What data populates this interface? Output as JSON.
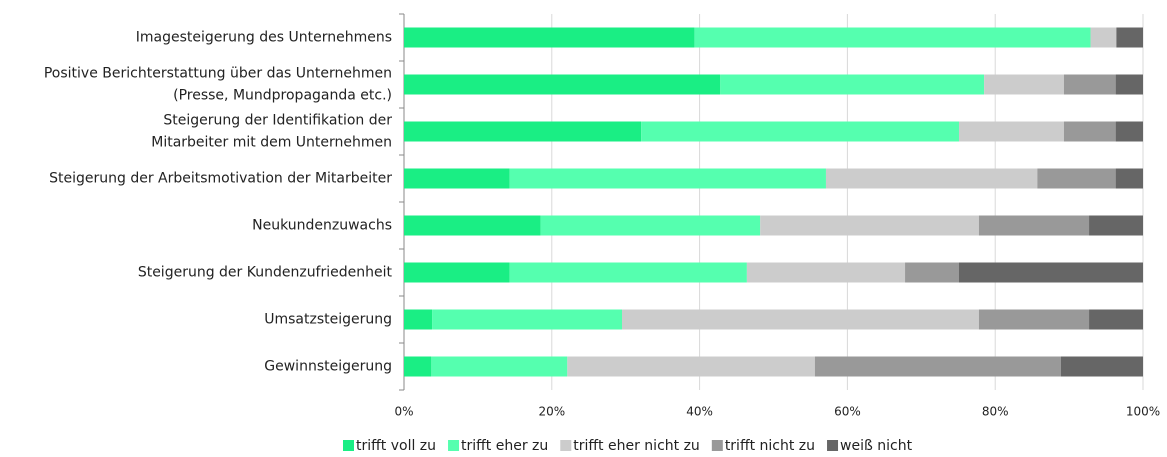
{
  "chart_data": {
    "type": "stacked-barh",
    "categories": [
      "Imagesteigerung des Unternehmens",
      "Positive Berichterstattung über das Unternehmen\n(Presse, Mundpropaganda etc.)",
      "Steigerung der Identifikation der\nMitarbeiter mit dem Unternehmen",
      "Steigerung der Arbeitsmotivation der Mitarbeiter",
      "Neukundenzuwachs",
      "Steigerung der Kundenzufriedenheit",
      "Umsatzsteigerung",
      "Gewinnsteigerung"
    ],
    "series": [
      {
        "name": "trifft voll zu",
        "color": "#1aee84",
        "values": [
          39.3,
          42.8,
          32.1,
          14.3,
          18.5,
          14.3,
          3.8,
          3.7
        ]
      },
      {
        "name": "trifft eher zu",
        "color": "#55ffaf",
        "values": [
          53.6,
          35.7,
          43.0,
          42.8,
          29.7,
          32.1,
          25.7,
          18.4
        ]
      },
      {
        "name": "trifft eher nicht zu",
        "color": "#cccccc",
        "values": [
          3.5,
          10.8,
          14.2,
          28.6,
          29.6,
          21.4,
          48.3,
          33.5
        ]
      },
      {
        "name": "trifft nicht zu",
        "color": "#999999",
        "values": [
          0,
          7.0,
          7.0,
          10.6,
          14.9,
          7.3,
          14.9,
          33.3
        ]
      },
      {
        "name": "weiß nicht",
        "color": "#666666",
        "values": [
          3.6,
          3.7,
          3.7,
          3.7,
          7.3,
          24.9,
          7.3,
          11.1
        ]
      }
    ],
    "xlim": [
      0,
      100
    ],
    "xticks": [
      {
        "value": 0,
        "label": "0%"
      },
      {
        "value": 20,
        "label": "20%"
      },
      {
        "value": 40,
        "label": "40%"
      },
      {
        "value": 60,
        "label": "60%"
      },
      {
        "value": 80,
        "label": "80%"
      },
      {
        "value": 100,
        "label": "100%"
      }
    ],
    "grid": true,
    "legend": "bottom"
  }
}
